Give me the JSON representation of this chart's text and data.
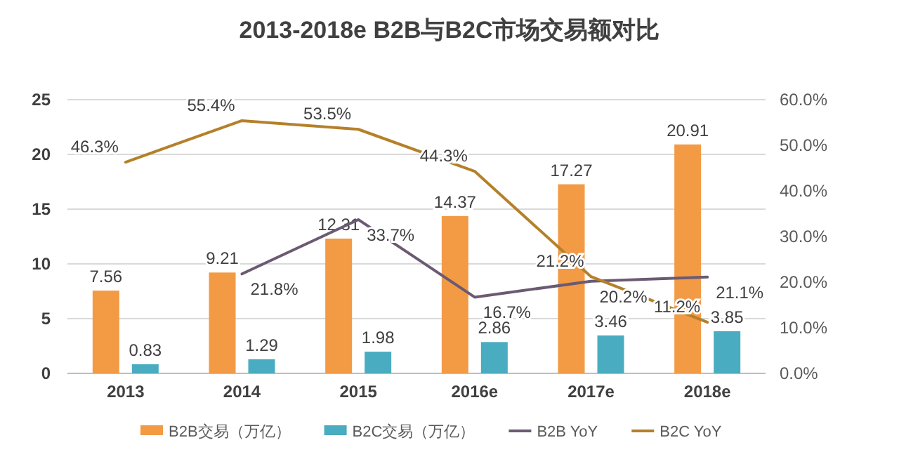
{
  "chart_data": {
    "type": "bar",
    "title": "2013-2018e B2B与B2C市场交易额对比",
    "categories": [
      "2013",
      "2014",
      "2015",
      "2016e",
      "2017e",
      "2018e"
    ],
    "series": [
      {
        "name": "B2B交易（万亿）",
        "color": "#f39a45",
        "values": [
          7.56,
          9.21,
          12.31,
          14.37,
          17.27,
          20.91
        ]
      },
      {
        "name": "B2C交易（万亿）",
        "color": "#4aacc0",
        "values": [
          0.83,
          1.29,
          1.98,
          2.86,
          3.46,
          3.85
        ]
      },
      {
        "name": "B2B YoY",
        "type": "line",
        "axis": "y2",
        "color": "#6b5a72",
        "values": [
          null,
          21.8,
          33.7,
          16.7,
          20.2,
          21.1
        ],
        "value_labels": [
          null,
          "21.8%",
          "33.7%",
          "16.7%",
          "20.2%",
          "21.1%"
        ]
      },
      {
        "name": "B2C YoY",
        "type": "line",
        "axis": "y2",
        "color": "#b5802a",
        "values": [
          46.3,
          55.4,
          53.5,
          44.3,
          21.2,
          11.2
        ],
        "value_labels": [
          "46.3%",
          "55.4%",
          "53.5%",
          "44.3%",
          "21.2%",
          "11.2%"
        ]
      }
    ],
    "ylim": [
      0,
      25
    ],
    "yticks": [
      0,
      5,
      10,
      15,
      20,
      25
    ],
    "y2lim": [
      0,
      60
    ],
    "y2ticks": [
      {
        "value": 0,
        "label": "0.0%"
      },
      {
        "value": 10,
        "label": "10.0%"
      },
      {
        "value": 20,
        "label": "20.0%"
      },
      {
        "value": 30,
        "label": "30.0%"
      },
      {
        "value": 40,
        "label": "40.0%"
      },
      {
        "value": 50,
        "label": "50.0%"
      },
      {
        "value": 60,
        "label": "60.0%"
      }
    ],
    "data_labels": true,
    "grid": "y",
    "legend": "bottom"
  }
}
